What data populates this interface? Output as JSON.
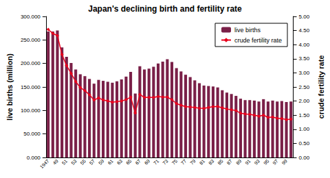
{
  "chart_data": {
    "type": "bar",
    "title": "Japan's declining birth and fertility rate",
    "y_label": "live births (million)",
    "y2_label": "crude fertility rate",
    "categories": [
      "1947",
      null,
      "49",
      null,
      "51",
      null,
      "53",
      null,
      "55",
      null,
      "57",
      null,
      "59",
      null,
      "61",
      null,
      "63",
      null,
      "65",
      null,
      "67",
      null,
      "69",
      null,
      "71",
      null,
      "73",
      null,
      "75",
      null,
      "77",
      null,
      "79",
      null,
      "81",
      null,
      "83",
      null,
      "85",
      null,
      "87",
      null,
      "89",
      null,
      "91",
      null,
      "93",
      null,
      "95",
      null,
      "97",
      null,
      "99",
      null
    ],
    "series": [
      {
        "name": "live births",
        "type": "bar",
        "axis": "y",
        "color": "#7a2048",
        "values": [
          268,
          268,
          270,
          234,
          214,
          201,
          187,
          177,
          173,
          167,
          157,
          165,
          163,
          161,
          159,
          162,
          166,
          172,
          182,
          136,
          194,
          187,
          189,
          193,
          200,
          204,
          209,
          203,
          190,
          183,
          176,
          171,
          164,
          158,
          153,
          152,
          151,
          149,
          143,
          138,
          135,
          131,
          125,
          122,
          122,
          121,
          119,
          124,
          119,
          121,
          119,
          120,
          118,
          119
        ]
      },
      {
        "name": "crude fertility rate",
        "type": "line",
        "axis": "y2",
        "color": "#e8001c",
        "marker": "diamond",
        "line_style": "solid",
        "values": [
          4.54,
          4.4,
          4.32,
          3.65,
          3.26,
          2.98,
          2.69,
          2.48,
          2.37,
          2.22,
          2.04,
          2.11,
          2.04,
          2.0,
          1.96,
          1.98,
          2.0,
          2.05,
          2.14,
          1.58,
          2.23,
          2.13,
          2.13,
          2.13,
          2.16,
          2.14,
          2.14,
          2.05,
          1.91,
          1.85,
          1.8,
          1.79,
          1.77,
          1.75,
          1.74,
          1.77,
          1.8,
          1.81,
          1.76,
          1.72,
          1.69,
          1.66,
          1.57,
          1.54,
          1.53,
          1.5,
          1.46,
          1.5,
          1.42,
          1.43,
          1.39,
          1.38,
          1.34,
          1.36
        ]
      }
    ],
    "ylim": [
      0,
      300
    ],
    "yticks": [
      {
        "value": 0,
        "label": "0.000"
      },
      {
        "value": 50,
        "label": "50.000"
      },
      {
        "value": 100,
        "label": "100.000"
      },
      {
        "value": 150,
        "label": "150.000"
      },
      {
        "value": 200,
        "label": "200.000"
      },
      {
        "value": 250,
        "label": "250.000"
      },
      {
        "value": 300,
        "label": "300.000"
      }
    ],
    "y2lim": [
      0,
      5
    ],
    "y2ticks": [
      {
        "value": 0,
        "label": "0.00"
      },
      {
        "value": 0.5,
        "label": "0.50"
      },
      {
        "value": 1,
        "label": "1.00"
      },
      {
        "value": 1.5,
        "label": "1.50"
      },
      {
        "value": 2,
        "label": "2.00"
      },
      {
        "value": 2.5,
        "label": "2.50"
      },
      {
        "value": 3,
        "label": "3.00"
      },
      {
        "value": 3.5,
        "label": "3.50"
      },
      {
        "value": 4,
        "label": "4.00"
      },
      {
        "value": 4.5,
        "label": "4.50"
      },
      {
        "value": 5,
        "label": "5.00"
      }
    ],
    "grid": false,
    "legend": "upper right"
  }
}
